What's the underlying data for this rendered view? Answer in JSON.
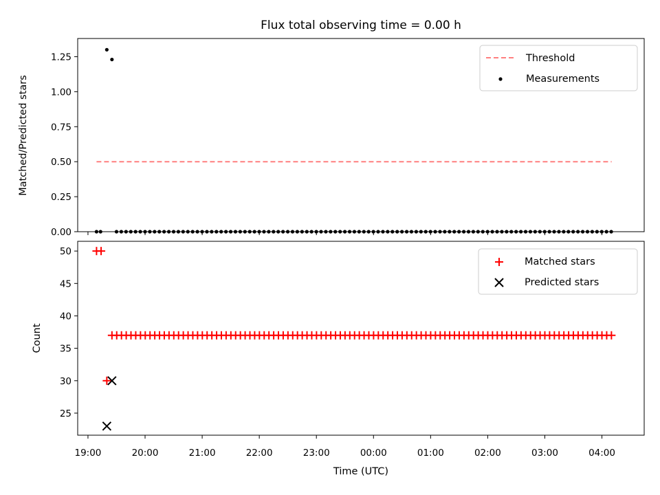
{
  "chart_data": [
    {
      "type": "scatter",
      "title": "Flux total observing time = 0.00 h",
      "xlabel": "",
      "ylabel": "Matched/Predicted stars",
      "xlim": [
        18.82,
        28.74
      ],
      "ylim": [
        0.0,
        1.38
      ],
      "yticks": [
        0.0,
        0.25,
        0.5,
        0.75,
        1.0,
        1.25
      ],
      "ytick_labels": [
        "0.00",
        "0.25",
        "0.50",
        "0.75",
        "1.00",
        "1.25"
      ],
      "legend_position": "top-right",
      "series": [
        {
          "name": "Threshold",
          "kind": "line",
          "style": "dashed",
          "color": "#ff7f7f",
          "x": [
            19.15,
            28.17
          ],
          "y": [
            0.5,
            0.5
          ]
        },
        {
          "name": "Measurements",
          "kind": "scatter",
          "marker": "dot",
          "color": "#000000",
          "points": [
            [
              19.15,
              0.0
            ],
            [
              19.22,
              0.0
            ],
            [
              19.33,
              1.3
            ],
            [
              19.42,
              1.23
            ]
          ],
          "regular": {
            "x_start": 19.5,
            "x_end": 28.2,
            "step": 0.0833,
            "y": 0.0
          }
        }
      ]
    },
    {
      "type": "scatter",
      "title": "",
      "xlabel": "Time (UTC)",
      "ylabel": "Count",
      "xlim": [
        18.82,
        28.74
      ],
      "ylim": [
        21.6,
        51.5
      ],
      "yticks": [
        25,
        30,
        35,
        40,
        45,
        50
      ],
      "ytick_labels": [
        "25",
        "30",
        "35",
        "40",
        "45",
        "50"
      ],
      "xticks": [
        19,
        20,
        21,
        22,
        23,
        24,
        25,
        26,
        27,
        28
      ],
      "xtick_labels": [
        "19:00",
        "20:00",
        "21:00",
        "22:00",
        "23:00",
        "00:00",
        "01:00",
        "02:00",
        "03:00",
        "04:00"
      ],
      "legend_position": "top-right",
      "series": [
        {
          "name": "Matched stars",
          "kind": "scatter",
          "marker": "plus",
          "color": "#ff0000",
          "points": [
            [
              19.15,
              50
            ],
            [
              19.23,
              50
            ],
            [
              19.33,
              30
            ]
          ],
          "regular": {
            "x_start": 19.42,
            "x_end": 28.17,
            "step": 0.0833,
            "y": 37
          }
        },
        {
          "name": "Predicted stars",
          "kind": "scatter",
          "marker": "x",
          "color": "#000000",
          "points": [
            [
              19.33,
              23
            ],
            [
              19.42,
              30
            ]
          ]
        }
      ]
    }
  ]
}
